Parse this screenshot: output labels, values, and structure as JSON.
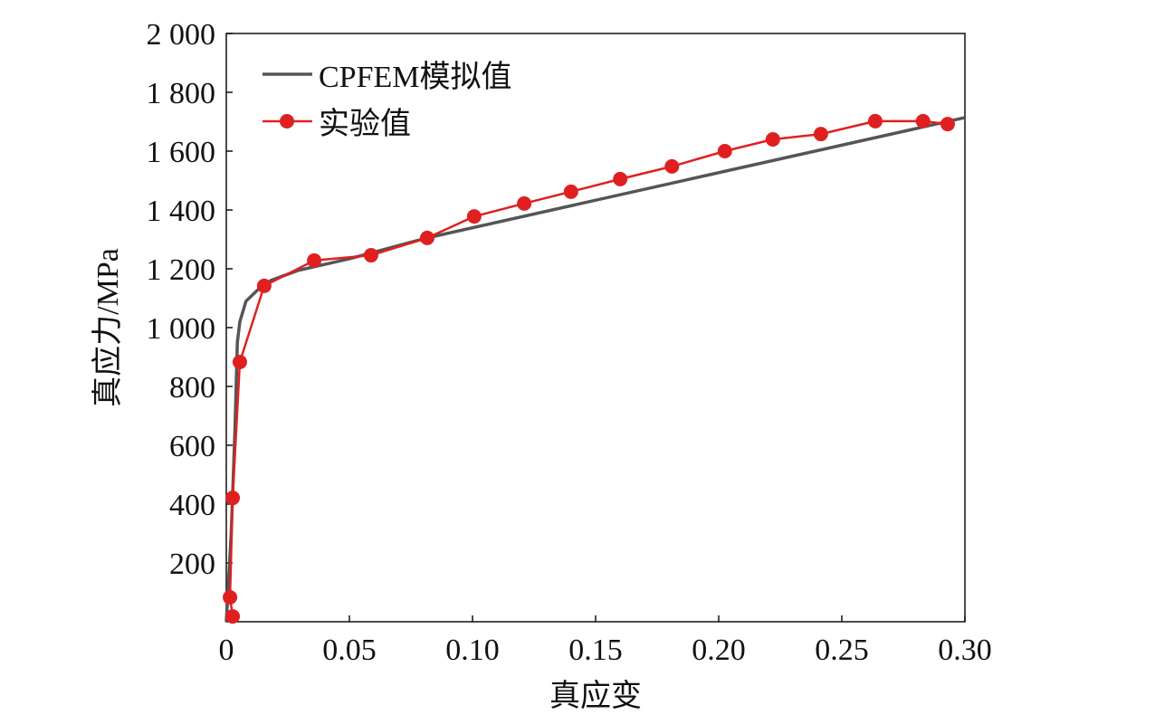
{
  "chart_data": {
    "type": "line",
    "title": "",
    "xlabel": "真应变",
    "ylabel": "真应力/MPa",
    "xlim": [
      0,
      0.3
    ],
    "ylim": [
      0,
      2000
    ],
    "xticks": [
      0,
      0.05,
      0.1,
      0.15,
      0.2,
      0.25,
      0.3
    ],
    "xtick_labels": [
      "0",
      "0.05",
      "0.10",
      "0.15",
      "0.20",
      "0.25",
      "0.30"
    ],
    "yticks": [
      200,
      400,
      600,
      800,
      1000,
      1200,
      1400,
      1600,
      1800,
      2000
    ],
    "ytick_labels": [
      "200",
      "400",
      "600",
      "800",
      "1 000",
      "1 200",
      "1 400",
      "1 600",
      "1 800",
      "2 000"
    ],
    "legend_position": "top-left",
    "grid": false,
    "series": [
      {
        "name": "CPFEM模拟值",
        "color": "#555555",
        "marker": "none",
        "x": [
          0,
          0.002,
          0.0035,
          0.0045,
          0.0055,
          0.008,
          0.013,
          0.018,
          0.029,
          0.05,
          0.0816,
          0.3
        ],
        "y": [
          0,
          300,
          650,
          950,
          1020,
          1090,
          1130,
          1160,
          1194,
          1234,
          1305,
          1714
        ]
      },
      {
        "name": "实验值",
        "color": "#e02020",
        "marker": "circle",
        "x": [
          0.0026,
          0.0015,
          0.0026,
          0.0055,
          0.0154,
          0.0357,
          0.0588,
          0.0816,
          0.1007,
          0.121,
          0.14,
          0.16,
          0.181,
          0.2025,
          0.222,
          0.2415,
          0.2636,
          0.283,
          0.293
        ],
        "y": [
          18,
          83,
          421,
          883,
          1142,
          1228,
          1246,
          1305,
          1378,
          1422,
          1462,
          1505,
          1548,
          1600,
          1640,
          1658,
          1702,
          1702,
          1692
        ]
      }
    ]
  }
}
